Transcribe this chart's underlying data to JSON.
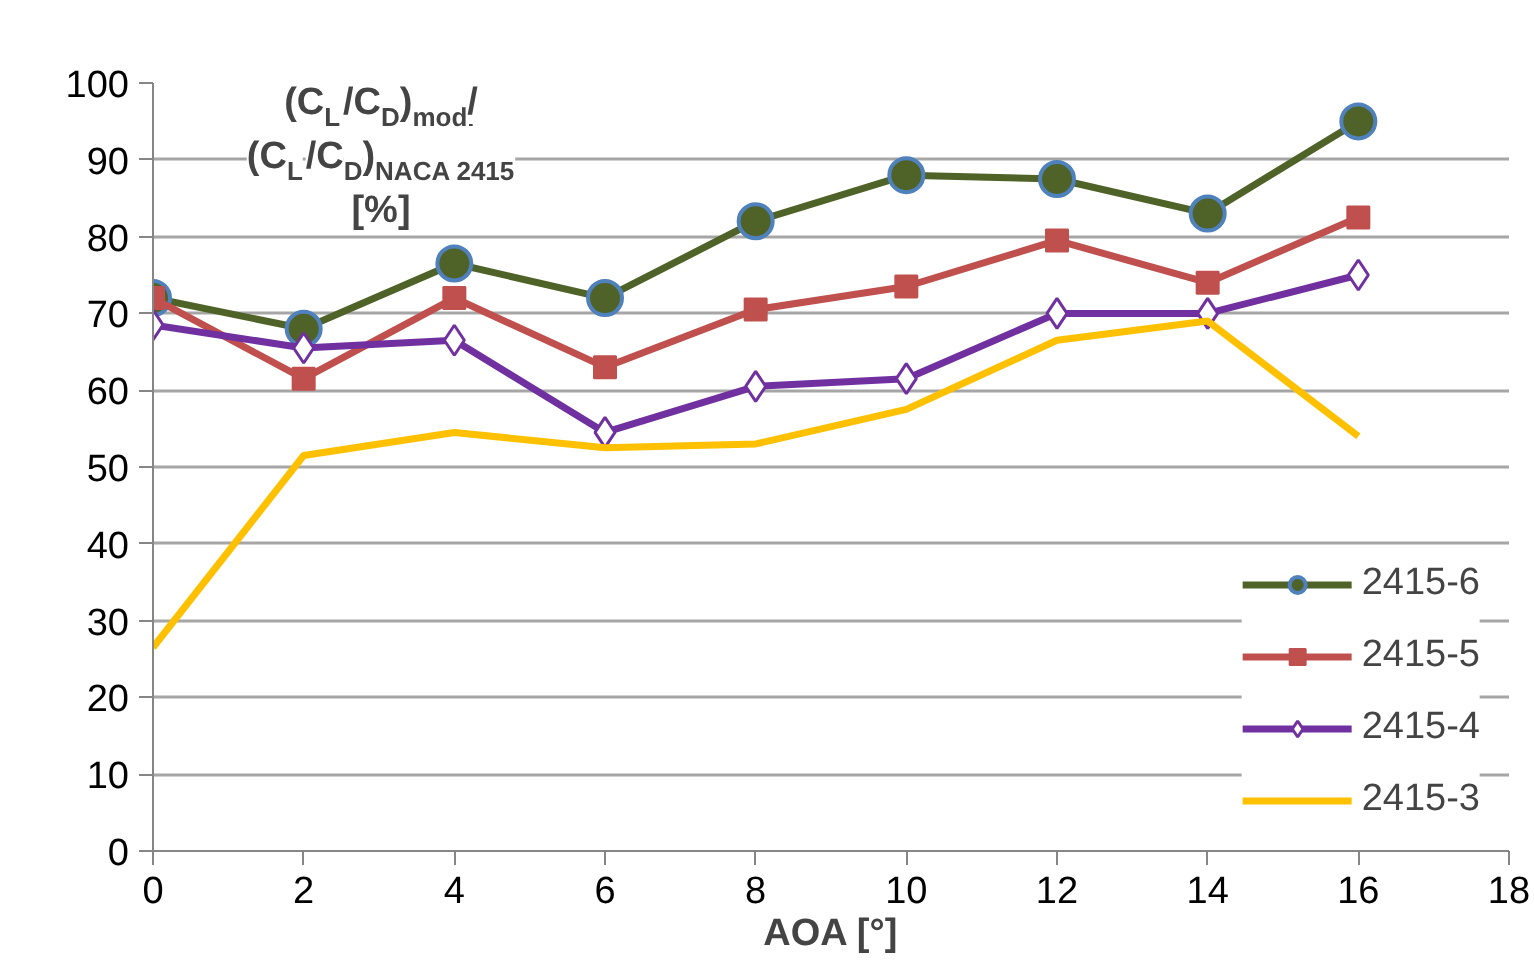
{
  "chart_data": {
    "type": "line",
    "ylabel": "(C$_{L}$/C$_{D}$)$_{mod.}$/\n(C$_{L}$/C$_{D}$)$_{NACA 2415}$\n[%]",
    "xlabel": "AOA [°]",
    "x": [
      0,
      2,
      4,
      6,
      8,
      10,
      12,
      14,
      16
    ],
    "series": [
      {
        "name": "2415-6",
        "color": "#4f6228",
        "marker": "circle",
        "values": [
          72,
          68,
          76.5,
          72,
          82,
          88,
          87.5,
          83,
          95
        ]
      },
      {
        "name": "2415-5",
        "color": "#c0504d",
        "marker": "square",
        "values": [
          72,
          61.5,
          72,
          63,
          70.5,
          73.5,
          79.5,
          74,
          82.5
        ]
      },
      {
        "name": "2415-4",
        "color": "#7030a0",
        "marker": "diamond",
        "values": [
          68.5,
          65.5,
          66.5,
          54.5,
          60.5,
          61.5,
          70,
          70,
          75
        ]
      },
      {
        "name": "2415-3",
        "color": "#ffc000",
        "marker": "none",
        "values": [
          26.5,
          51.5,
          54.5,
          52.5,
          53,
          57.5,
          66.5,
          69,
          54
        ]
      }
    ],
    "xlim": [
      0,
      18
    ],
    "xticks": [
      0,
      2,
      4,
      6,
      8,
      10,
      12,
      14,
      16,
      18
    ],
    "ylim": [
      0,
      100
    ],
    "yticks": [
      0,
      10,
      20,
      30,
      40,
      50,
      60,
      70,
      80,
      90,
      100
    ],
    "grid": "y",
    "legend": "bottom right",
    "line_style": "solid"
  }
}
